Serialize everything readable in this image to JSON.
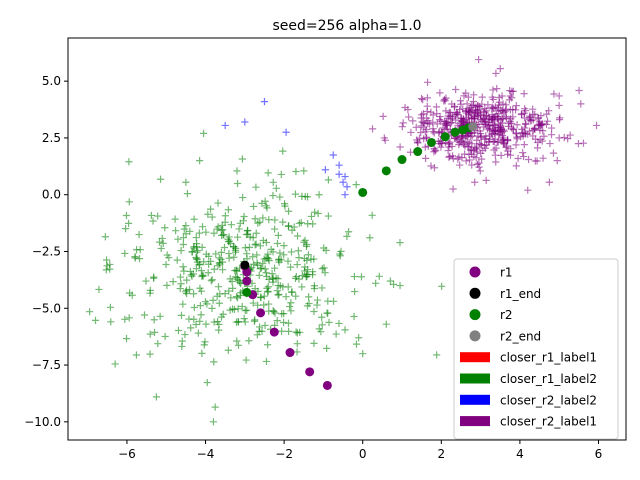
{
  "chart_data": {
    "type": "scatter",
    "title": "seed=256 alpha=1.0",
    "xlabel": "",
    "ylabel": "",
    "xlim": [
      -7.5,
      6.7
    ],
    "ylim": [
      -10.8,
      6.9
    ],
    "xticks": [
      -6,
      -4,
      -2,
      0,
      2,
      4,
      6
    ],
    "yticks": [
      -10.0,
      -7.5,
      -5.0,
      -2.5,
      0.0,
      2.5,
      5.0
    ],
    "xtick_labels": [
      "−6",
      "−4",
      "−2",
      "0",
      "2",
      "4",
      "6"
    ],
    "ytick_labels": [
      "−10.0",
      "−7.5",
      "−5.0",
      "−2.5",
      "0.0",
      "2.5",
      "5.0"
    ],
    "grid": false,
    "legend_position": "lower-right",
    "clusters": [
      {
        "name": "closer_r1_label2",
        "color": "#008000",
        "marker": "plus",
        "center": [
          -3.0,
          -3.3
        ],
        "spread": [
          1.5,
          1.8
        ],
        "count": 480
      },
      {
        "name": "closer_r2_label1",
        "color": "#800080",
        "marker": "plus",
        "center": [
          3.0,
          3.0
        ],
        "spread": [
          0.9,
          0.75
        ],
        "count": 520
      }
    ],
    "extra_points": [
      {
        "series": "closer_r2_label2",
        "color": "#0000ff",
        "points": [
          [
            -3.5,
            3.05
          ],
          [
            -3.0,
            3.2
          ],
          [
            -2.5,
            4.1
          ],
          [
            -1.95,
            2.75
          ],
          [
            -0.75,
            1.75
          ],
          [
            -0.6,
            1.3
          ],
          [
            -0.6,
            0.9
          ],
          [
            -0.45,
            0.8
          ],
          [
            -0.4,
            0.35
          ],
          [
            -0.45,
            0.0
          ],
          [
            -0.95,
            1.1
          ],
          [
            -0.5,
            0.55
          ]
        ]
      },
      {
        "series": "closer_r1_label2",
        "color": "#008000",
        "points": [
          [
            -4.05,
            2.7
          ],
          [
            -4.15,
            1.5
          ],
          [
            -4.5,
            0.55
          ],
          [
            -3.2,
            1.05
          ],
          [
            -1.5,
            1.05
          ],
          [
            -3.8,
            -10.0
          ],
          [
            -6.95,
            -5.15
          ],
          [
            -6.3,
            -7.45
          ],
          [
            -6.55,
            -1.85
          ],
          [
            -5.25,
            -8.9
          ],
          [
            -5.95,
            1.45
          ],
          [
            0.0,
            -7.0
          ],
          [
            0.6,
            -5.7
          ],
          [
            0.95,
            -4.0
          ],
          [
            -0.45,
            -5.95
          ]
        ]
      },
      {
        "series": "closer_r2_label1",
        "color": "#800080",
        "points": [
          [
            0.25,
            2.9
          ],
          [
            0.55,
            2.5
          ],
          [
            1.15,
            3.75
          ],
          [
            1.6,
            1.6
          ],
          [
            5.95,
            3.05
          ],
          [
            5.55,
            4.0
          ],
          [
            5.0,
            2.5
          ],
          [
            4.95,
            1.5
          ],
          [
            4.75,
            0.55
          ],
          [
            4.2,
            0.2
          ],
          [
            2.85,
            0.55
          ],
          [
            2.3,
            0.25
          ],
          [
            3.5,
            5.55
          ],
          [
            2.95,
            5.95
          ],
          [
            1.65,
            4.95
          ],
          [
            5.0,
            4.35
          ]
        ]
      }
    ],
    "series": [
      {
        "name": "r1",
        "color": "#800080",
        "marker": "circle",
        "x": [
          -0.9,
          -1.35,
          -1.85,
          -2.25,
          -2.6,
          -2.8,
          -2.95,
          -2.95,
          -3.0
        ],
        "y": [
          -8.4,
          -7.8,
          -6.95,
          -6.05,
          -5.2,
          -4.4,
          -3.8,
          -3.4,
          -3.15
        ]
      },
      {
        "name": "r1_end",
        "color": "#000000",
        "marker": "circle",
        "x": [
          -3.0
        ],
        "y": [
          -3.1
        ]
      },
      {
        "name": "r2",
        "color": "#008000",
        "marker": "circle",
        "x": [
          -2.95,
          0.0,
          0.6,
          1.0,
          1.4,
          1.75,
          2.1,
          2.35,
          2.55,
          2.7
        ],
        "y": [
          -4.3,
          0.1,
          1.05,
          1.55,
          1.9,
          2.3,
          2.55,
          2.75,
          2.85,
          2.95
        ]
      },
      {
        "name": "r2_end",
        "color": "#808080",
        "marker": "circle",
        "x": [
          2.8
        ],
        "y": [
          3.0
        ]
      }
    ],
    "legend": [
      {
        "label": "r1",
        "kind": "marker",
        "color": "#800080"
      },
      {
        "label": "r1_end",
        "kind": "marker",
        "color": "#000000"
      },
      {
        "label": "r2",
        "kind": "marker",
        "color": "#008000"
      },
      {
        "label": "r2_end",
        "kind": "marker",
        "color": "#808080"
      },
      {
        "label": "closer_r1_label1",
        "kind": "patch",
        "color": "#ff0000"
      },
      {
        "label": "closer_r1_label2",
        "kind": "patch",
        "color": "#008000"
      },
      {
        "label": "closer_r2_label2",
        "kind": "patch",
        "color": "#0000ff"
      },
      {
        "label": "closer_r2_label1",
        "kind": "patch",
        "color": "#800080"
      }
    ]
  }
}
